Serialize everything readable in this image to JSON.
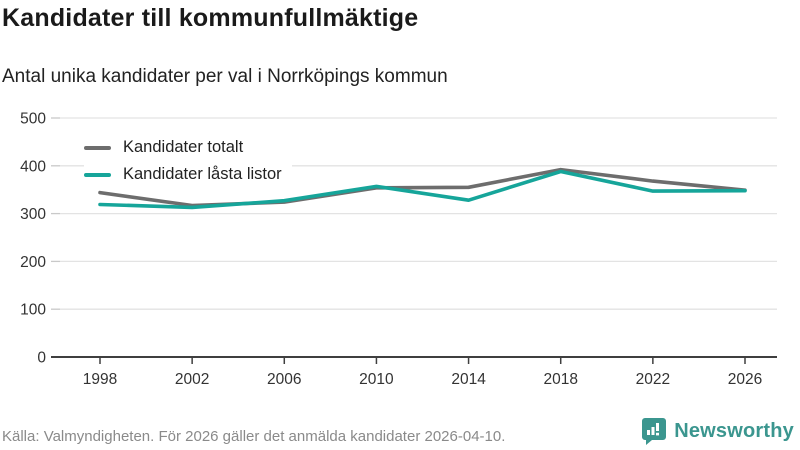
{
  "header": {
    "title": "Kandidater till kommunfullmäktige",
    "subtitle": "Antal unika kandidater per val i Norrköpings kommun"
  },
  "chart_data": {
    "type": "line",
    "categories": [
      "1998",
      "2002",
      "2006",
      "2010",
      "2014",
      "2018",
      "2022",
      "2026"
    ],
    "series": [
      {
        "name": "Kandidater totalt",
        "color": "#6d6d6d",
        "values": [
          344,
          317,
          324,
          354,
          355,
          392,
          368,
          349
        ]
      },
      {
        "name": "Kandidater låsta listor",
        "color": "#16a59a",
        "values": [
          319,
          313,
          327,
          357,
          328,
          388,
          347,
          348
        ]
      }
    ],
    "title": "Kandidater till kommunfullmäktige",
    "xlabel": "",
    "ylabel": "",
    "ylim": [
      0,
      500
    ],
    "yticks": [
      0,
      100,
      200,
      300,
      400,
      500
    ],
    "grid": "horizontal",
    "legend_position": "top-left",
    "colors": {
      "gridline": "#e3e3e3",
      "axis": "#3f3f3f",
      "tick_label": "#333333"
    }
  },
  "footer": {
    "source": "Källa: Valmyndigheten. För 2026 gäller det anmälda kandidater 2026-04-10.",
    "brand": "Newsworthy",
    "brand_color": "#3b968f",
    "logo_icon": "bar-chart-speech-bubble"
  }
}
